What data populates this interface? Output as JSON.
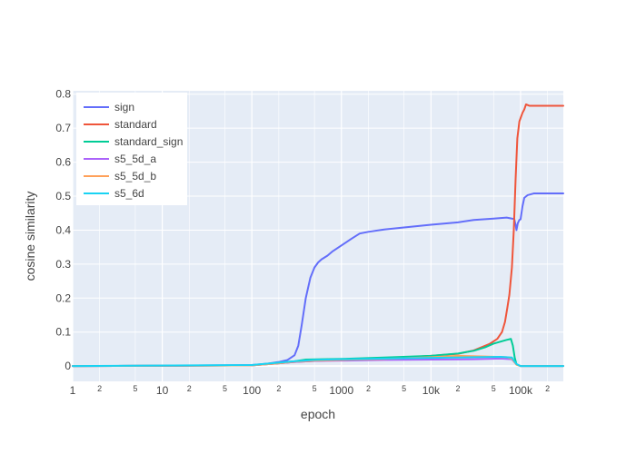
{
  "chart_data": {
    "type": "line",
    "title": "",
    "xlabel": "epoch",
    "ylabel": "cosine similarity",
    "xscale": "log",
    "xlim": [
      1,
      300000
    ],
    "ylim": [
      -0.045,
      0.81
    ],
    "grid": true,
    "legend_position": "top-left",
    "colors": {
      "plot_bg": "#e5ecf6",
      "grid": "#ffffff",
      "text": "#444444",
      "legend_bg": "#ffffff"
    },
    "y_ticks": [
      {
        "value": 0,
        "label": "0"
      },
      {
        "value": 0.1,
        "label": "0.1"
      },
      {
        "value": 0.2,
        "label": "0.2"
      },
      {
        "value": 0.3,
        "label": "0.3"
      },
      {
        "value": 0.4,
        "label": "0.4"
      },
      {
        "value": 0.5,
        "label": "0.5"
      },
      {
        "value": 0.6,
        "label": "0.6"
      },
      {
        "value": 0.7,
        "label": "0.7"
      },
      {
        "value": 0.8,
        "label": "0.8"
      }
    ],
    "x_major_ticks": [
      {
        "value": 1,
        "label": "1"
      },
      {
        "value": 10,
        "label": "10"
      },
      {
        "value": 100,
        "label": "100"
      },
      {
        "value": 1000,
        "label": "1000"
      },
      {
        "value": 10000,
        "label": "10k"
      },
      {
        "value": 100000,
        "label": "100k"
      }
    ],
    "x_minor_ticks": [
      {
        "value": 2,
        "label": "2"
      },
      {
        "value": 5,
        "label": "5"
      },
      {
        "value": 20,
        "label": "2"
      },
      {
        "value": 50,
        "label": "5"
      },
      {
        "value": 200,
        "label": "2"
      },
      {
        "value": 500,
        "label": "5"
      },
      {
        "value": 2000,
        "label": "2"
      },
      {
        "value": 5000,
        "label": "5"
      },
      {
        "value": 20000,
        "label": "2"
      },
      {
        "value": 50000,
        "label": "5"
      },
      {
        "value": 200000,
        "label": "2"
      }
    ],
    "series": [
      {
        "name": "sign",
        "color": "#636efa",
        "points": [
          [
            1,
            0
          ],
          [
            10,
            0.001
          ],
          [
            100,
            0.003
          ],
          [
            150,
            0.007
          ],
          [
            200,
            0.012
          ],
          [
            250,
            0.018
          ],
          [
            300,
            0.032
          ],
          [
            330,
            0.06
          ],
          [
            360,
            0.12
          ],
          [
            400,
            0.2
          ],
          [
            450,
            0.26
          ],
          [
            500,
            0.29
          ],
          [
            550,
            0.305
          ],
          [
            600,
            0.314
          ],
          [
            700,
            0.325
          ],
          [
            800,
            0.338
          ],
          [
            1000,
            0.355
          ],
          [
            1300,
            0.375
          ],
          [
            1600,
            0.39
          ],
          [
            2000,
            0.395
          ],
          [
            3000,
            0.402
          ],
          [
            5000,
            0.408
          ],
          [
            10000,
            0.416
          ],
          [
            20000,
            0.423
          ],
          [
            30000,
            0.43
          ],
          [
            50000,
            0.434
          ],
          [
            70000,
            0.437
          ],
          [
            80000,
            0.434
          ],
          [
            85000,
            0.433
          ],
          [
            88000,
            0.415
          ],
          [
            90000,
            0.4
          ],
          [
            93000,
            0.42
          ],
          [
            97000,
            0.43
          ],
          [
            100000,
            0.432
          ],
          [
            105000,
            0.47
          ],
          [
            110000,
            0.495
          ],
          [
            120000,
            0.503
          ],
          [
            140000,
            0.508
          ],
          [
            200000,
            0.508
          ],
          [
            300000,
            0.508
          ]
        ]
      },
      {
        "name": "standard",
        "color": "#ef553b",
        "points": [
          [
            1,
            0
          ],
          [
            100,
            0.002
          ],
          [
            200,
            0.008
          ],
          [
            300,
            0.012
          ],
          [
            500,
            0.015
          ],
          [
            1000,
            0.018
          ],
          [
            3000,
            0.022
          ],
          [
            10000,
            0.03
          ],
          [
            20000,
            0.036
          ],
          [
            30000,
            0.046
          ],
          [
            45000,
            0.065
          ],
          [
            55000,
            0.08
          ],
          [
            62000,
            0.1
          ],
          [
            67000,
            0.13
          ],
          [
            71000,
            0.17
          ],
          [
            75000,
            0.21
          ],
          [
            80000,
            0.29
          ],
          [
            84000,
            0.4
          ],
          [
            88000,
            0.55
          ],
          [
            92000,
            0.67
          ],
          [
            97000,
            0.72
          ],
          [
            105000,
            0.745
          ],
          [
            110000,
            0.755
          ],
          [
            115000,
            0.77
          ],
          [
            125000,
            0.766
          ],
          [
            150000,
            0.766
          ],
          [
            300000,
            0.766
          ]
        ]
      },
      {
        "name": "standard_sign",
        "color": "#00cc96",
        "points": [
          [
            1,
            0
          ],
          [
            100,
            0.002
          ],
          [
            200,
            0.01
          ],
          [
            300,
            0.014
          ],
          [
            400,
            0.019
          ],
          [
            600,
            0.02
          ],
          [
            1000,
            0.021
          ],
          [
            3000,
            0.025
          ],
          [
            10000,
            0.03
          ],
          [
            20000,
            0.037
          ],
          [
            30000,
            0.045
          ],
          [
            40000,
            0.055
          ],
          [
            50000,
            0.066
          ],
          [
            60000,
            0.072
          ],
          [
            70000,
            0.077
          ],
          [
            78000,
            0.08
          ],
          [
            82000,
            0.06
          ],
          [
            86000,
            0.025
          ],
          [
            90000,
            0.005
          ],
          [
            100000,
            0
          ],
          [
            300000,
            0
          ]
        ]
      },
      {
        "name": "s5_5d_a",
        "color": "#ab63fa",
        "points": [
          [
            1,
            0
          ],
          [
            100,
            0.002
          ],
          [
            200,
            0.008
          ],
          [
            300,
            0.012
          ],
          [
            500,
            0.015
          ],
          [
            1000,
            0.016
          ],
          [
            3000,
            0.018
          ],
          [
            10000,
            0.019
          ],
          [
            30000,
            0.02
          ],
          [
            60000,
            0.022
          ],
          [
            80000,
            0.02
          ],
          [
            90000,
            0.005
          ],
          [
            100000,
            0
          ],
          [
            300000,
            0
          ]
        ]
      },
      {
        "name": "s5_5d_b",
        "color": "#ffa15a",
        "points": [
          [
            1,
            0
          ],
          [
            100,
            0.002
          ],
          [
            200,
            0.008
          ],
          [
            300,
            0.013
          ],
          [
            500,
            0.016
          ],
          [
            1000,
            0.018
          ],
          [
            3000,
            0.021
          ],
          [
            10000,
            0.026
          ],
          [
            20000,
            0.03
          ],
          [
            40000,
            0.028
          ],
          [
            70000,
            0.026
          ],
          [
            80000,
            0.022
          ],
          [
            90000,
            0.004
          ],
          [
            100000,
            0
          ],
          [
            300000,
            0
          ]
        ]
      },
      {
        "name": "s5_6d",
        "color": "#19d3f3",
        "points": [
          [
            1,
            0
          ],
          [
            100,
            0.003
          ],
          [
            200,
            0.01
          ],
          [
            300,
            0.014
          ],
          [
            500,
            0.018
          ],
          [
            1000,
            0.02
          ],
          [
            3000,
            0.022
          ],
          [
            10000,
            0.024
          ],
          [
            30000,
            0.026
          ],
          [
            60000,
            0.027
          ],
          [
            80000,
            0.025
          ],
          [
            90000,
            0.006
          ],
          [
            100000,
            0
          ],
          [
            300000,
            0
          ]
        ]
      }
    ]
  }
}
